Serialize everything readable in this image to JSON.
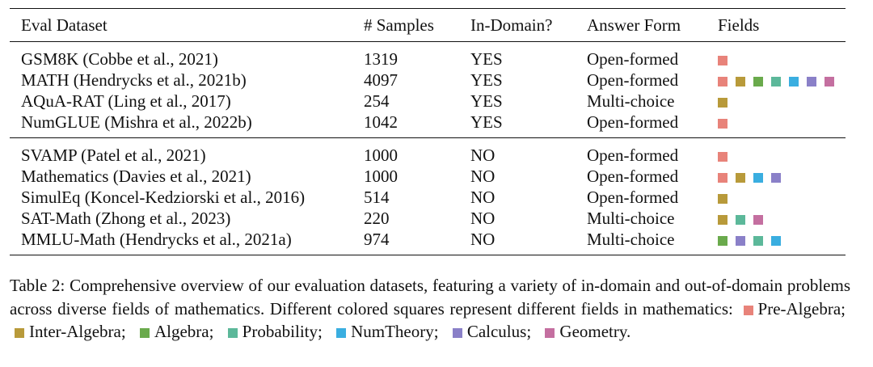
{
  "table": {
    "header": [
      "Eval Dataset",
      "# Samples",
      "In-Domain?",
      "Answer Form",
      "Fields"
    ],
    "groups": [
      [
        {
          "cells": [
            "GSM8K (Cobbe et al., 2021)",
            "1319",
            "YES",
            "Open-formed"
          ],
          "fields": [
            "#e8837a"
          ]
        },
        {
          "cells": [
            "MATH (Hendrycks et al., 2021b)",
            "4097",
            "YES",
            "Open-formed"
          ],
          "fields": [
            "#e8837a",
            "#b89a3a",
            "#6aaa4c",
            "#5cb89a",
            "#3aaee0",
            "#8a80c8",
            "#c46fa0"
          ]
        },
        {
          "cells": [
            "AQuA-RAT (Ling et al., 2017)",
            "254",
            "YES",
            "Multi-choice"
          ],
          "fields": [
            "#b89a3a"
          ]
        },
        {
          "cells": [
            "NumGLUE (Mishra et al., 2022b)",
            "1042",
            "YES",
            "Open-formed"
          ],
          "fields": [
            "#e8837a"
          ]
        }
      ],
      [
        {
          "cells": [
            "SVAMP (Patel et al., 2021)",
            "1000",
            "NO",
            "Open-formed"
          ],
          "fields": [
            "#e8837a"
          ]
        },
        {
          "cells": [
            "Mathematics (Davies et al., 2021)",
            "1000",
            "NO",
            "Open-formed"
          ],
          "fields": [
            "#e8837a",
            "#b89a3a",
            "#3aaee0",
            "#8a80c8"
          ]
        },
        {
          "cells": [
            "SimulEq (Koncel-Kedziorski et al., 2016)",
            "514",
            "NO",
            "Open-formed"
          ],
          "fields": [
            "#b89a3a"
          ]
        },
        {
          "cells": [
            "SAT-Math (Zhong et al., 2023)",
            "220",
            "NO",
            "Multi-choice"
          ],
          "fields": [
            "#b89a3a",
            "#5cb89a",
            "#c46fa0"
          ]
        },
        {
          "cells": [
            "MMLU-Math (Hendrycks et al., 2021a)",
            "974",
            "NO",
            "Multi-choice"
          ],
          "fields": [
            "#6aaa4c",
            "#8a80c8",
            "#5cb89a",
            "#3aaee0"
          ]
        }
      ]
    ]
  },
  "caption": {
    "text": "Table 2: Comprehensive overview of our evaluation datasets, featuring a variety of in-domain and out-of-domain problems across diverse fields of mathematics.  Different colored squares represent different fields in mathematics:",
    "legend": [
      {
        "label": "Pre-Algebra;",
        "color": "#e8837a"
      },
      {
        "label": "Inter-Algebra;",
        "color": "#b89a3a"
      },
      {
        "label": "Algebra;",
        "color": "#6aaa4c"
      },
      {
        "label": "Probability;",
        "color": "#5cb89a"
      },
      {
        "label": "NumTheory;",
        "color": "#3aaee0"
      },
      {
        "label": "Calculus;",
        "color": "#8a80c8"
      },
      {
        "label": "Geometry.",
        "color": "#c46fa0"
      }
    ]
  }
}
